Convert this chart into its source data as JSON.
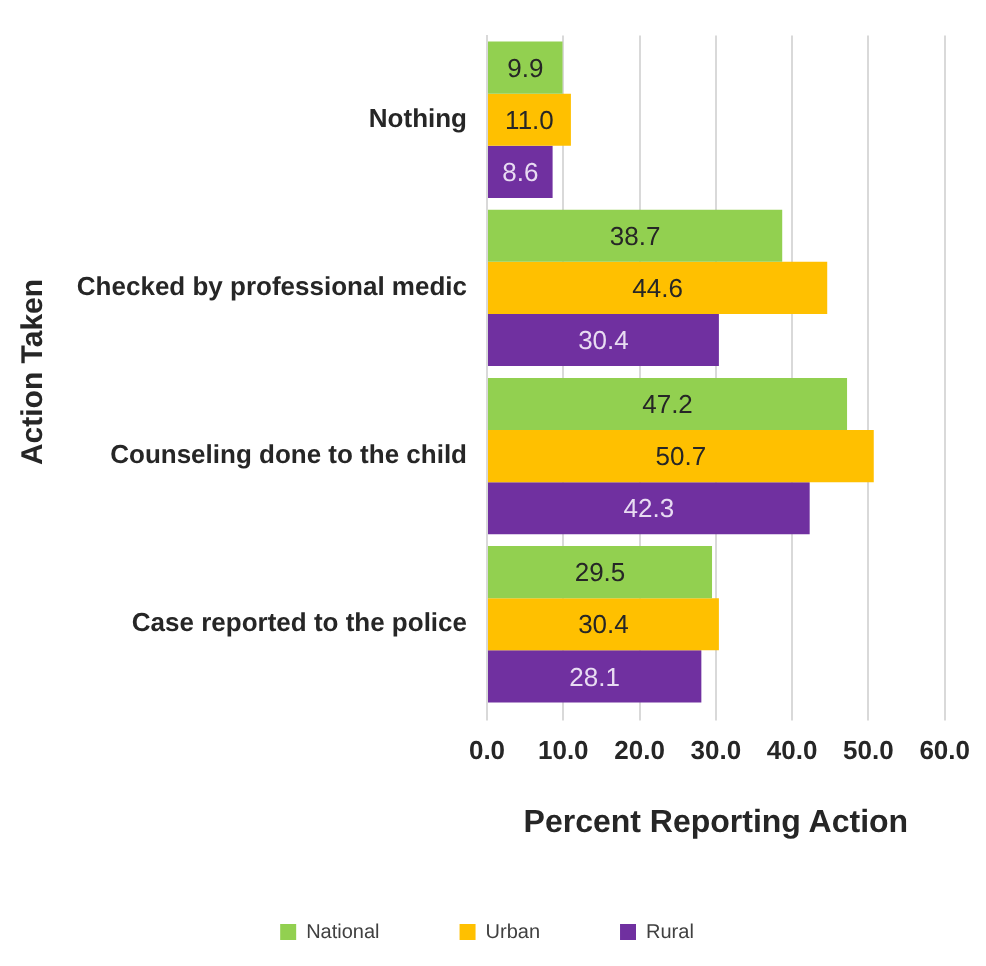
{
  "chart_data": {
    "type": "bar",
    "orientation": "horizontal",
    "xlabel": "Percent Reporting Action",
    "ylabel": "Action Taken",
    "categories": [
      "Nothing",
      "Checked by professional medic",
      "Counseling done to the child",
      "Case reported to the police"
    ],
    "series": [
      {
        "name": "National",
        "color": "#92d050",
        "values": [
          9.9,
          38.7,
          47.2,
          29.5
        ],
        "value_labels": [
          "9.9",
          "38.7",
          "47.2",
          "29.5"
        ]
      },
      {
        "name": "Urban",
        "color": "#ffc000",
        "values": [
          11.0,
          44.6,
          50.7,
          30.4
        ],
        "value_labels": [
          "11.0",
          "44.6",
          "50.7",
          "30.4"
        ]
      },
      {
        "name": "Rural",
        "color": "#7030a0",
        "values": [
          8.6,
          30.4,
          42.3,
          28.1
        ],
        "value_labels": [
          "8.6",
          "30.4",
          "42.3",
          "28.1"
        ]
      }
    ],
    "xlim": [
      0,
      60
    ],
    "xticks": [
      {
        "value": 0,
        "label": "0.0"
      },
      {
        "value": 10,
        "label": "10.0"
      },
      {
        "value": 20,
        "label": "20.0"
      },
      {
        "value": 30,
        "label": "30.0"
      },
      {
        "value": 40,
        "label": "40.0"
      },
      {
        "value": 50,
        "label": "50.0"
      },
      {
        "value": 60,
        "label": "60.0"
      }
    ],
    "grid": "x",
    "legend": "bottom"
  }
}
